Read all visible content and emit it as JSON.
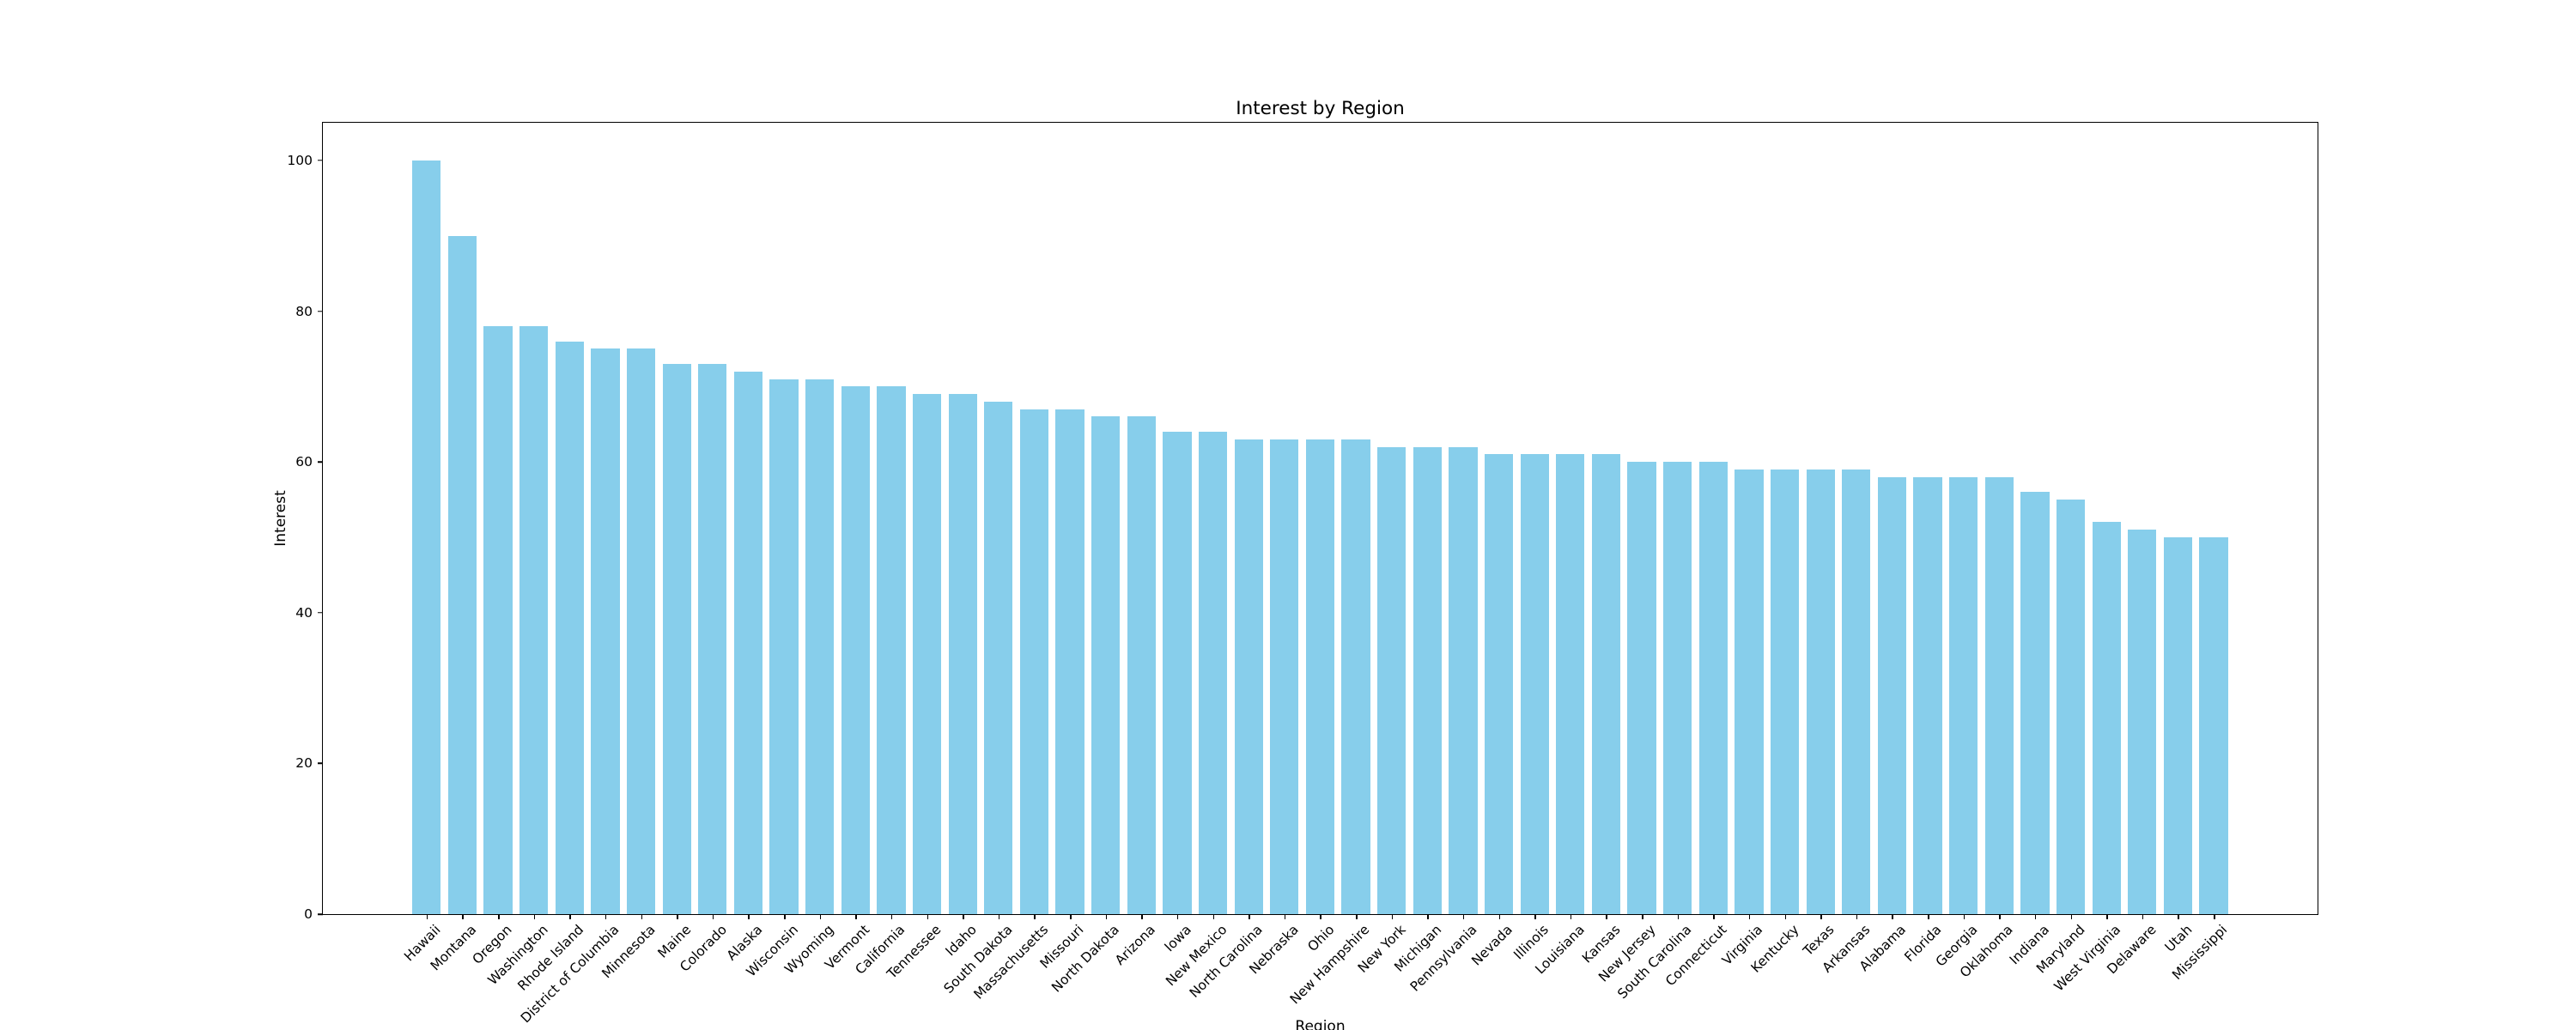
{
  "figure": {
    "background": "#ffffff",
    "text_color": "#000000",
    "spine_color": "#000000"
  },
  "chart_data": {
    "type": "bar",
    "title": "Interest by Region",
    "xlabel": "Region",
    "ylabel": "Interest",
    "bar_color": "#87CEEB",
    "grid": false,
    "legend": false,
    "ylim": [
      0,
      105
    ],
    "yticks": [
      0,
      20,
      40,
      60,
      80,
      100
    ],
    "categories": [
      "Hawaii",
      "Montana",
      "Oregon",
      "Washington",
      "Rhode Island",
      "District of Columbia",
      "Minnesota",
      "Maine",
      "Colorado",
      "Alaska",
      "Wisconsin",
      "Wyoming",
      "Vermont",
      "California",
      "Tennessee",
      "Idaho",
      "South Dakota",
      "Massachusetts",
      "Missouri",
      "North Dakota",
      "Arizona",
      "Iowa",
      "New Mexico",
      "North Carolina",
      "Nebraska",
      "Ohio",
      "New Hampshire",
      "New York",
      "Michigan",
      "Pennsylvania",
      "Nevada",
      "Illinois",
      "Louisiana",
      "Kansas",
      "New Jersey",
      "South Carolina",
      "Connecticut",
      "Virginia",
      "Kentucky",
      "Texas",
      "Arkansas",
      "Alabama",
      "Florida",
      "Georgia",
      "Oklahoma",
      "Indiana",
      "Maryland",
      "West Virginia",
      "Delaware",
      "Utah",
      "Mississippi"
    ],
    "values": [
      100,
      90,
      78,
      78,
      76,
      75,
      75,
      73,
      73,
      72,
      71,
      71,
      70,
      70,
      69,
      69,
      68,
      67,
      67,
      66,
      66,
      64,
      64,
      63,
      63,
      63,
      63,
      62,
      62,
      62,
      61,
      61,
      61,
      61,
      60,
      60,
      60,
      59,
      59,
      59,
      59,
      58,
      58,
      58,
      58,
      56,
      55,
      52,
      51,
      50,
      50
    ]
  }
}
